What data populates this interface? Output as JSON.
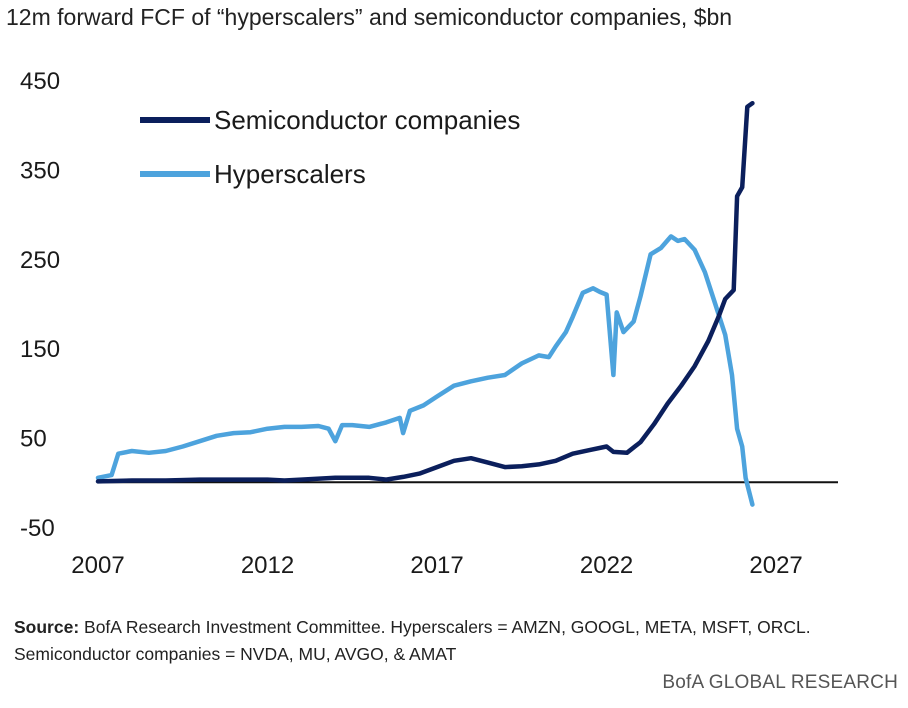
{
  "chart_data": {
    "type": "line",
    "subtitle": "12m forward FCF of “hyperscalers” and semiconductor companies, $bn",
    "xlim": [
      2007,
      2028
    ],
    "ylim": [
      -50,
      450
    ],
    "x_ticks": [
      "2007",
      "2012",
      "2017",
      "2022",
      "2027"
    ],
    "y_ticks": [
      "450",
      "350",
      "250",
      "150",
      "50",
      "-50"
    ],
    "zero_line": true,
    "grid": false,
    "legend_position": "top-left",
    "series": [
      {
        "name": "Semiconductor companies",
        "color": "#0b1f5c",
        "points": [
          [
            2007.0,
            1
          ],
          [
            2008.0,
            2
          ],
          [
            2009.0,
            2
          ],
          [
            2010.0,
            3
          ],
          [
            2011.0,
            3
          ],
          [
            2012.0,
            3
          ],
          [
            2012.5,
            2
          ],
          [
            2013.0,
            3
          ],
          [
            2014.0,
            5
          ],
          [
            2015.0,
            5
          ],
          [
            2015.5,
            3
          ],
          [
            2016.0,
            6
          ],
          [
            2016.5,
            10
          ],
          [
            2017.0,
            17
          ],
          [
            2017.5,
            24
          ],
          [
            2018.0,
            27
          ],
          [
            2018.5,
            22
          ],
          [
            2019.0,
            17
          ],
          [
            2019.5,
            18
          ],
          [
            2020.0,
            20
          ],
          [
            2020.5,
            24
          ],
          [
            2021.0,
            32
          ],
          [
            2021.5,
            36
          ],
          [
            2022.0,
            40
          ],
          [
            2022.2,
            34
          ],
          [
            2022.6,
            33
          ],
          [
            2023.0,
            45
          ],
          [
            2023.4,
            65
          ],
          [
            2023.8,
            88
          ],
          [
            2024.2,
            108
          ],
          [
            2024.6,
            130
          ],
          [
            2025.0,
            158
          ],
          [
            2025.3,
            185
          ],
          [
            2025.5,
            205
          ],
          [
            2025.75,
            215
          ],
          [
            2025.85,
            320
          ],
          [
            2026.0,
            330
          ],
          [
            2026.15,
            420
          ],
          [
            2026.3,
            424
          ]
        ]
      },
      {
        "name": "Hyperscalers",
        "color": "#4da3dd",
        "points": [
          [
            2007.0,
            5
          ],
          [
            2007.4,
            8
          ],
          [
            2007.6,
            32
          ],
          [
            2008.0,
            35
          ],
          [
            2008.5,
            33
          ],
          [
            2009.0,
            35
          ],
          [
            2009.5,
            40
          ],
          [
            2010.0,
            46
          ],
          [
            2010.5,
            52
          ],
          [
            2011.0,
            55
          ],
          [
            2011.5,
            56
          ],
          [
            2012.0,
            60
          ],
          [
            2012.5,
            62
          ],
          [
            2013.0,
            62
          ],
          [
            2013.5,
            63
          ],
          [
            2013.8,
            60
          ],
          [
            2014.0,
            46
          ],
          [
            2014.2,
            64
          ],
          [
            2014.5,
            64
          ],
          [
            2015.0,
            62
          ],
          [
            2015.5,
            67
          ],
          [
            2015.9,
            72
          ],
          [
            2016.0,
            55
          ],
          [
            2016.2,
            80
          ],
          [
            2016.6,
            86
          ],
          [
            2017.0,
            96
          ],
          [
            2017.5,
            108
          ],
          [
            2018.0,
            113
          ],
          [
            2018.5,
            117
          ],
          [
            2019.0,
            120
          ],
          [
            2019.5,
            133
          ],
          [
            2020.0,
            142
          ],
          [
            2020.3,
            140
          ],
          [
            2020.5,
            152
          ],
          [
            2020.8,
            168
          ],
          [
            2021.0,
            185
          ],
          [
            2021.3,
            212
          ],
          [
            2021.6,
            217
          ],
          [
            2021.8,
            213
          ],
          [
            2022.0,
            210
          ],
          [
            2022.2,
            120
          ],
          [
            2022.3,
            190
          ],
          [
            2022.5,
            168
          ],
          [
            2022.8,
            180
          ],
          [
            2023.0,
            208
          ],
          [
            2023.3,
            255
          ],
          [
            2023.6,
            262
          ],
          [
            2023.9,
            275
          ],
          [
            2024.1,
            270
          ],
          [
            2024.3,
            272
          ],
          [
            2024.6,
            260
          ],
          [
            2024.9,
            235
          ],
          [
            2025.2,
            200
          ],
          [
            2025.5,
            165
          ],
          [
            2025.7,
            120
          ],
          [
            2025.85,
            60
          ],
          [
            2026.0,
            40
          ],
          [
            2026.1,
            5
          ],
          [
            2026.3,
            -25
          ]
        ]
      }
    ],
    "source_label": "Source:",
    "source_text": " BofA Research Investment Committee. Hyperscalers = AMZN, GOOGL, META, MSFT, ORCL. Semiconductor companies = NVDA, MU, AVGO, & AMAT",
    "brand": "BofA GLOBAL RESEARCH"
  }
}
